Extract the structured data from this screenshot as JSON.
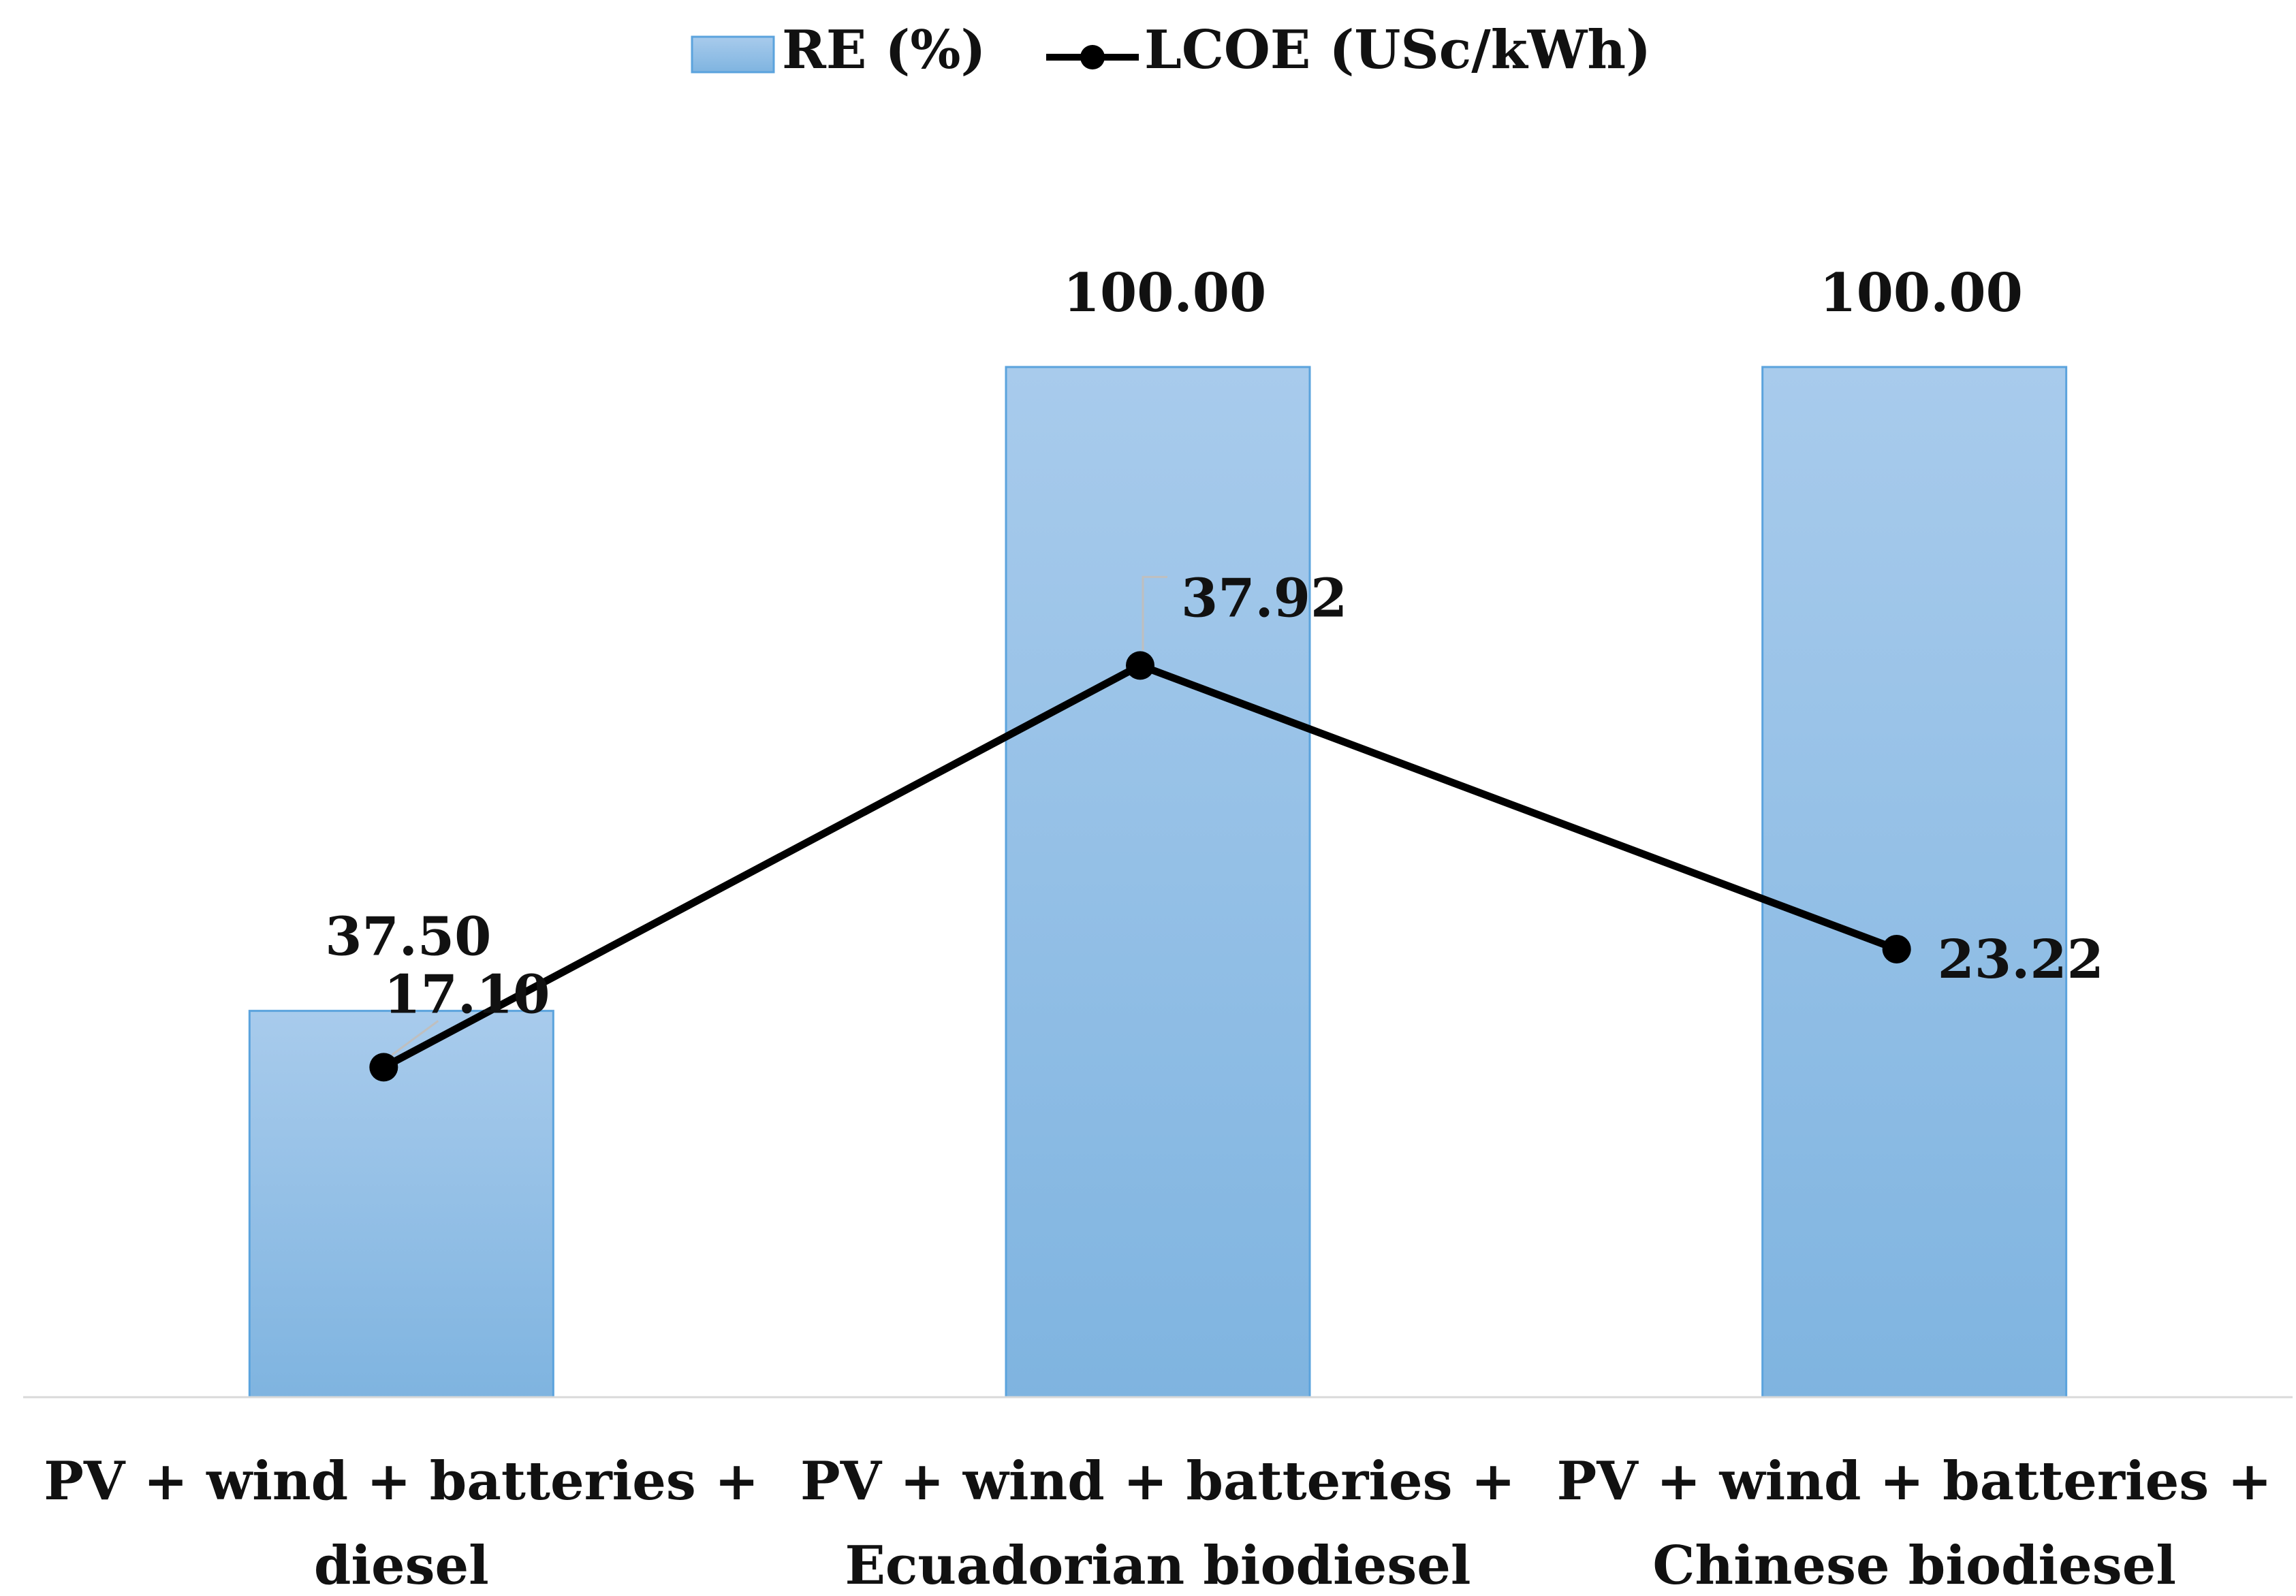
{
  "chart_data": {
    "type": "bar",
    "categories": [
      [
        "PV + wind + batteries +",
        "diesel"
      ],
      [
        "PV + wind + batteries +",
        "Ecuadorian biodiesel"
      ],
      [
        "PV + wind + batteries +",
        "Chinese biodiesel"
      ]
    ],
    "series": [
      {
        "name": "RE (%)",
        "type": "bar",
        "values": [
          37.5,
          100.0,
          100.0
        ],
        "labels": [
          "37.50",
          "100.00",
          "100.00"
        ],
        "color_top": "#a8cbec",
        "color_bottom": "#7fb4e0",
        "border": "#5ba3dd"
      },
      {
        "name": "LCOE (USc/kWh)",
        "type": "line",
        "values": [
          17.1,
          37.92,
          23.22
        ],
        "labels": [
          "17.10",
          "37.92",
          "23.22"
        ],
        "color": "#000000"
      }
    ],
    "bar_axis": {
      "ylim": [
        0,
        100
      ],
      "visible": false
    },
    "line_axis": {
      "ylim": [
        0,
        60
      ],
      "visible": false
    },
    "xlabel": "",
    "ylabel": "",
    "grid": false,
    "legend": "top-center",
    "baseline_color": "#d9d9d9"
  }
}
